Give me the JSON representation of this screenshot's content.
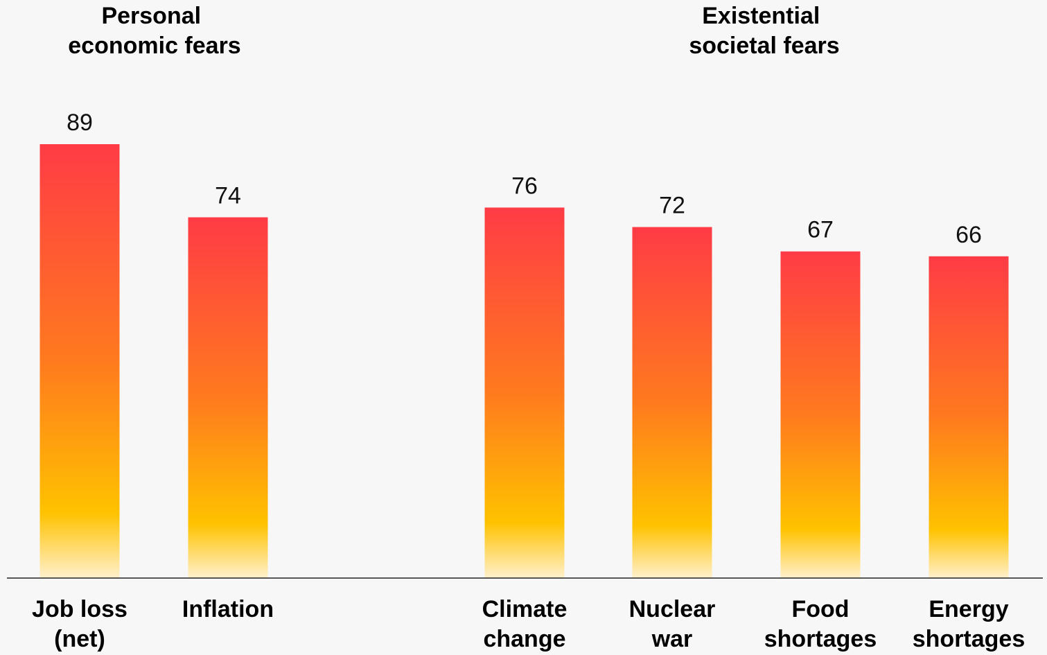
{
  "chart_data": {
    "type": "bar",
    "groups": [
      {
        "title": [
          "Personal",
          "economic fears"
        ]
      },
      {
        "title": [
          "Existential",
          "societal fears"
        ]
      }
    ],
    "categories": [
      {
        "label": [
          "Job loss",
          "(net)"
        ],
        "group": 0,
        "value": 89
      },
      {
        "label": [
          "Inflation"
        ],
        "group": 0,
        "value": 74
      },
      {
        "label": [
          "Climate",
          "change"
        ],
        "group": 1,
        "value": 76
      },
      {
        "label": [
          "Nuclear",
          "war"
        ],
        "group": 1,
        "value": 72
      },
      {
        "label": [
          "Food",
          "shortages"
        ],
        "group": 1,
        "value": 67
      },
      {
        "label": [
          "Energy",
          "shortages"
        ],
        "group": 1,
        "value": 66
      }
    ],
    "values": [
      89,
      74,
      76,
      72,
      67,
      66
    ],
    "ylim": [
      0,
      89
    ],
    "grid": false,
    "legend": "none",
    "colors": {
      "bar_top": "#ff3b46",
      "bar_mid": "#ff7a1e",
      "bar_low": "#ffc200",
      "bar_bottom": "#fff0cc",
      "axis": "#222222",
      "background": "#f7f7f7"
    }
  }
}
